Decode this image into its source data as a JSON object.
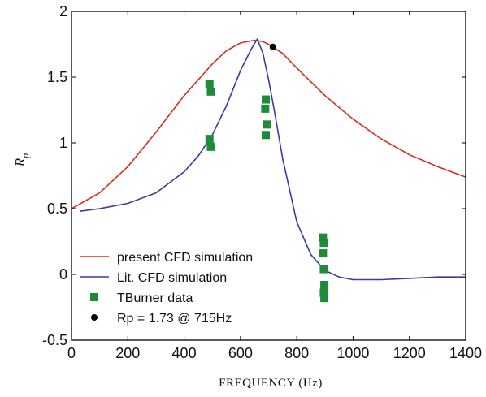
{
  "chart_data": {
    "type": "line",
    "xlabel": "FREQUENCY (Hz)",
    "ylabel": "R",
    "ylabel_sub": "p",
    "xlim": [
      0,
      1400
    ],
    "ylim": [
      -0.5,
      2
    ],
    "xticks": [
      0,
      200,
      400,
      600,
      800,
      1000,
      1200,
      1400
    ],
    "yticks": [
      -0.5,
      0,
      0.5,
      1,
      1.5,
      2
    ],
    "ytick_labels": [
      "-0.5",
      "0",
      "0.5",
      "1",
      "1.5",
      "2"
    ],
    "grid": false,
    "legend_position": "bottom-left",
    "series": [
      {
        "name": "present CFD simulation",
        "color": "#dd2a1f",
        "style": "line",
        "x": [
          0,
          100,
          200,
          300,
          400,
          500,
          550,
          600,
          650,
          680,
          700,
          750,
          800,
          900,
          1000,
          1100,
          1200,
          1300,
          1400
        ],
        "y": [
          0.5,
          0.62,
          0.82,
          1.08,
          1.36,
          1.6,
          1.7,
          1.76,
          1.78,
          1.77,
          1.75,
          1.68,
          1.57,
          1.36,
          1.18,
          1.03,
          0.91,
          0.82,
          0.74
        ]
      },
      {
        "name": "Lit. CFD simulation",
        "color": "#3a3aa8",
        "style": "line",
        "x": [
          30,
          100,
          200,
          300,
          400,
          450,
          500,
          550,
          600,
          640,
          660,
          680,
          700,
          720,
          750,
          800,
          850,
          900,
          950,
          1000,
          1100,
          1200,
          1300,
          1400
        ],
        "y": [
          0.48,
          0.5,
          0.54,
          0.62,
          0.78,
          0.9,
          1.06,
          1.28,
          1.55,
          1.72,
          1.79,
          1.68,
          1.48,
          1.25,
          0.88,
          0.4,
          0.15,
          0.03,
          -0.02,
          -0.04,
          -0.04,
          -0.03,
          -0.02,
          -0.02
        ]
      },
      {
        "name": "TBurner data",
        "color": "#1f8a3a",
        "style": "square",
        "x": [
          490,
          495,
          490,
          495,
          690,
          688,
          693,
          690,
          893,
          896,
          893,
          896,
          898,
          896,
          898
        ],
        "y": [
          1.45,
          1.39,
          1.03,
          0.97,
          1.33,
          1.26,
          1.14,
          1.06,
          0.28,
          0.24,
          0.16,
          0.04,
          -0.08,
          -0.14,
          -0.18
        ]
      },
      {
        "name": "Rp = 1.73 @ 715Hz",
        "color": "#000000",
        "style": "dot",
        "x": [
          715
        ],
        "y": [
          1.73
        ]
      }
    ]
  }
}
